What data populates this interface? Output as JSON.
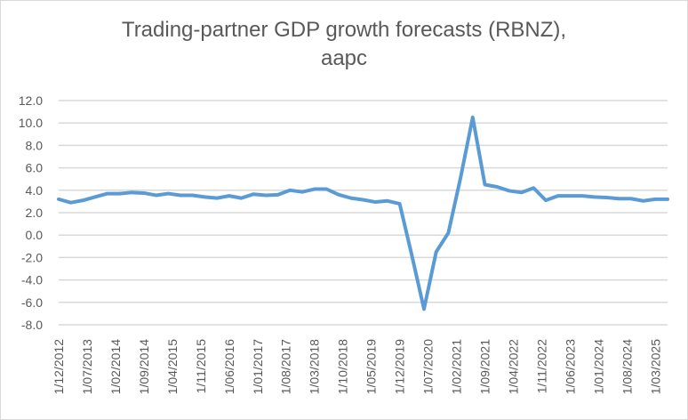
{
  "chart_data": {
    "type": "line",
    "title_lines": [
      "Trading-partner GDP growth forecasts (RBNZ),",
      "aapc"
    ],
    "xlabel": "",
    "ylabel": "",
    "ylim": [
      -8,
      12
    ],
    "y_ticks": [
      "12.0",
      "10.0",
      "8.0",
      "6.0",
      "4.0",
      "2.0",
      "0.0",
      "-2.0",
      "-4.0",
      "-6.0",
      "-8.0"
    ],
    "y_tick_values": [
      12,
      10,
      8,
      6,
      4,
      2,
      0,
      -2,
      -4,
      -6,
      -8
    ],
    "x_tick_labels": [
      "1/12/2012",
      "1/07/2013",
      "1/02/2014",
      "1/09/2014",
      "1/04/2015",
      "1/11/2015",
      "1/06/2016",
      "1/01/2017",
      "1/08/2017",
      "1/03/2018",
      "1/10/2018",
      "1/05/2019",
      "1/12/2019",
      "1/07/2020",
      "1/02/2021",
      "1/09/2021",
      "1/04/2022",
      "1/11/2022",
      "1/06/2023",
      "1/01/2024",
      "1/08/2024",
      "1/03/2025"
    ],
    "x_tick_months_from_start": [
      0,
      7,
      14,
      21,
      28,
      35,
      42,
      49,
      56,
      63,
      70,
      77,
      84,
      91,
      98,
      105,
      112,
      119,
      126,
      133,
      140,
      147
    ],
    "x_range_months": [
      0,
      150
    ],
    "grid": "horizontal",
    "legend": "none",
    "series": [
      {
        "name": "Trading-partner GDP growth forecast",
        "color": "#5b9bd5",
        "x_start": "1/12/2012",
        "x_step_months": 3,
        "values": [
          3.2,
          2.9,
          3.1,
          3.4,
          3.7,
          3.7,
          3.8,
          3.75,
          3.55,
          3.7,
          3.55,
          3.55,
          3.4,
          3.3,
          3.5,
          3.3,
          3.65,
          3.55,
          3.6,
          4.0,
          3.85,
          4.1,
          4.1,
          3.6,
          3.3,
          3.15,
          2.95,
          3.05,
          2.8,
          -1.8,
          -6.6,
          -1.5,
          0.2,
          5.1,
          10.5,
          4.5,
          4.3,
          3.95,
          3.8,
          4.2,
          3.1,
          3.5,
          3.5,
          3.5,
          3.4,
          3.35,
          3.25,
          3.25,
          3.05,
          3.2,
          3.2
        ]
      }
    ]
  }
}
